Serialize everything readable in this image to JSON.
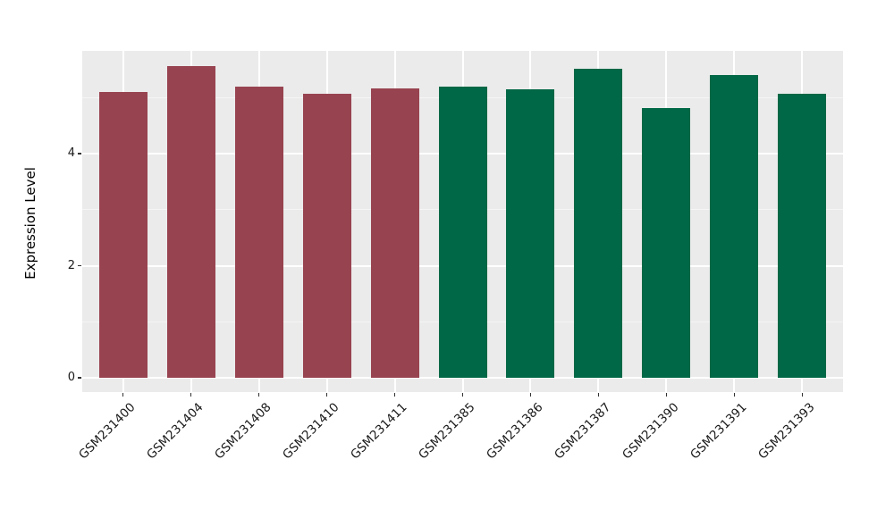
{
  "chart_data": {
    "type": "bar",
    "title": "",
    "xlabel": "",
    "ylabel": "Expression Level",
    "categories": [
      "GSM231400",
      "GSM231404",
      "GSM231408",
      "GSM231410",
      "GSM231411",
      "GSM231385",
      "GSM231386",
      "GSM231387",
      "GSM231390",
      "GSM231391",
      "GSM231393"
    ],
    "values": [
      5.1,
      5.56,
      5.19,
      5.07,
      5.17,
      5.19,
      5.15,
      5.52,
      4.82,
      5.41,
      5.06
    ],
    "groups": [
      "group1",
      "group1",
      "group1",
      "group1",
      "group1",
      "group2",
      "group2",
      "group2",
      "group2",
      "group2",
      "group2"
    ],
    "group_colors": {
      "group1": "#984350",
      "group2": "#006846"
    },
    "y_tick_labels": [
      "0",
      "2",
      "4"
    ],
    "y_ticks": [
      0,
      2,
      4
    ],
    "y_minor_ticks": [
      1,
      3,
      5
    ],
    "ylim": [
      -0.28,
      5.84
    ],
    "x_tick_rotation_deg": -45,
    "grid": "on",
    "legend_position": "none",
    "panel_background": "#EBEBEB",
    "grid_color": "#FFFFFF",
    "figure_background": "#FFFFFF",
    "text_color": "#1a1a1a"
  }
}
